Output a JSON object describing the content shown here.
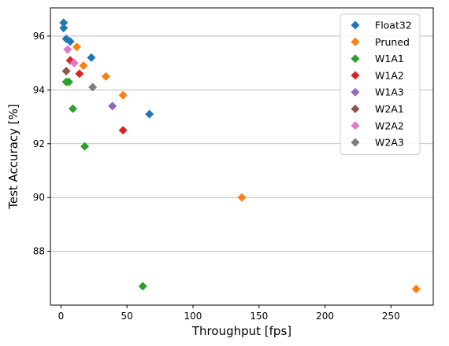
{
  "chart_data": {
    "type": "scatter",
    "xlabel": "Throughput [fps]",
    "ylabel": "Test Accuracy [%]",
    "xlim": [
      -8,
      282
    ],
    "ylim": [
      86.0,
      97.05
    ],
    "xticks": [
      0,
      50,
      100,
      150,
      200,
      250
    ],
    "yticks": [
      88,
      90,
      92,
      94,
      96
    ],
    "grid": "y-major",
    "legend_position": "top-right",
    "marker": "diamond",
    "series": [
      {
        "name": "Float32",
        "color": "#1f77b4",
        "points": [
          [
            2,
            96.5
          ],
          [
            2,
            96.3
          ],
          [
            4,
            95.9
          ],
          [
            7,
            95.8
          ],
          [
            23,
            95.2
          ],
          [
            67,
            93.1
          ]
        ]
      },
      {
        "name": "Pruned",
        "color": "#ff7f0e",
        "points": [
          [
            12,
            95.6
          ],
          [
            17,
            94.9
          ],
          [
            34,
            94.5
          ],
          [
            47,
            93.8
          ],
          [
            137,
            90.0
          ],
          [
            269,
            86.6
          ]
        ]
      },
      {
        "name": "W1A1",
        "color": "#2ca02c",
        "points": [
          [
            4,
            94.3
          ],
          [
            6,
            94.3
          ],
          [
            9,
            93.3
          ],
          [
            18,
            91.9
          ],
          [
            62,
            86.7
          ]
        ]
      },
      {
        "name": "W1A2",
        "color": "#d62728",
        "points": [
          [
            7,
            95.1
          ],
          [
            14,
            94.6
          ],
          [
            47,
            92.5
          ]
        ]
      },
      {
        "name": "W1A3",
        "color": "#9467bd",
        "points": [
          [
            39,
            93.4
          ]
        ]
      },
      {
        "name": "W2A1",
        "color": "#8c564b",
        "points": [
          [
            4,
            94.7
          ]
        ]
      },
      {
        "name": "W2A2",
        "color": "#e377c2",
        "points": [
          [
            5,
            95.5
          ],
          [
            10,
            95.0
          ]
        ]
      },
      {
        "name": "W2A3",
        "color": "#7f7f7f",
        "points": [
          [
            24,
            94.1
          ]
        ]
      }
    ]
  }
}
